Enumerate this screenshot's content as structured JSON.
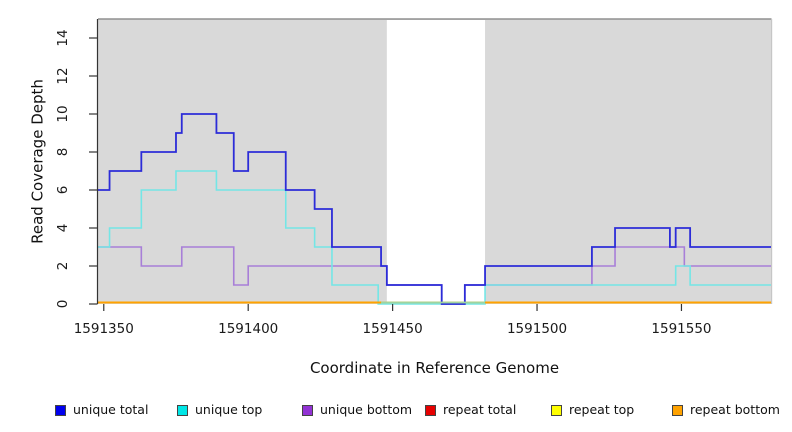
{
  "chart_data": {
    "type": "line",
    "subtype": "step-coverage",
    "title": "",
    "xlabel": "Coordinate in Reference Genome",
    "ylabel": "Read Coverage Depth",
    "xlim": [
      1591348,
      1591581
    ],
    "ylim": [
      0,
      15
    ],
    "x_ticks": [
      1591350,
      1591400,
      1591450,
      1591500,
      1591550
    ],
    "y_ticks": [
      0,
      2,
      4,
      6,
      8,
      10,
      12,
      14
    ],
    "grid": false,
    "legend_position": "bottom",
    "plot_bg_color": "#d9d9d9",
    "border_color": "#909090",
    "masked_region": {
      "x0": 1591448,
      "x1": 1591482,
      "color": "#ffffff"
    },
    "zero_band_segment": {
      "x0": 1591446,
      "x1": 1591482,
      "color": "#9fd49f"
    },
    "series": [
      {
        "id": "unique_total",
        "label": "unique total",
        "legend_color": "#0000ee",
        "line_color": "#2c2cd8",
        "x_end": 1591581,
        "steps": [
          [
            1591348,
            6
          ],
          [
            1591352,
            7
          ],
          [
            1591363,
            8
          ],
          [
            1591375,
            9
          ],
          [
            1591377,
            10
          ],
          [
            1591389,
            9
          ],
          [
            1591395,
            7
          ],
          [
            1591400,
            8
          ],
          [
            1591413,
            6
          ],
          [
            1591423,
            5
          ],
          [
            1591429,
            3
          ],
          [
            1591446,
            2
          ],
          [
            1591448,
            1
          ],
          [
            1591467,
            0
          ],
          [
            1591475,
            1
          ],
          [
            1591482,
            2
          ],
          [
            1591519,
            3
          ],
          [
            1591527,
            4
          ],
          [
            1591546,
            3
          ],
          [
            1591548,
            4
          ],
          [
            1591553,
            3
          ]
        ]
      },
      {
        "id": "unique_top",
        "label": "unique top",
        "legend_color": "#00e6e6",
        "line_color": "#74e6e6",
        "x_end": 1591581,
        "steps": [
          [
            1591348,
            3
          ],
          [
            1591352,
            4
          ],
          [
            1591363,
            6
          ],
          [
            1591375,
            7
          ],
          [
            1591389,
            6
          ],
          [
            1591413,
            4
          ],
          [
            1591423,
            3
          ],
          [
            1591429,
            1
          ],
          [
            1591445,
            0
          ],
          [
            1591482,
            1
          ],
          [
            1591548,
            2
          ],
          [
            1591553,
            1
          ]
        ]
      },
      {
        "id": "unique_bottom",
        "label": "unique bottom",
        "legend_color": "#9232d4",
        "line_color": "#a87fd8",
        "x_end": 1591581,
        "steps": [
          [
            1591348,
            3
          ],
          [
            1591363,
            2
          ],
          [
            1591377,
            3
          ],
          [
            1591395,
            1
          ],
          [
            1591400,
            2
          ],
          [
            1591448,
            1
          ],
          [
            1591467,
            0
          ],
          [
            1591475,
            1
          ],
          [
            1591519,
            2
          ],
          [
            1591527,
            3
          ],
          [
            1591551,
            2
          ]
        ]
      },
      {
        "id": "repeat_total",
        "label": "repeat total",
        "legend_color": "#e60000",
        "line_color": "#e60000",
        "x_end": 1591581,
        "steps": [
          [
            1591348,
            0
          ]
        ]
      },
      {
        "id": "repeat_top",
        "label": "repeat top",
        "legend_color": "#ffff00",
        "line_color": "#ffff00",
        "x_end": 1591581,
        "steps": [
          [
            1591348,
            0
          ]
        ]
      },
      {
        "id": "repeat_bottom",
        "label": "repeat bottom",
        "legend_color": "#ffa200",
        "line_color": "#ffa200",
        "x_end": 1591581,
        "gaps": [
          [
            1591446,
            1591482
          ]
        ],
        "steps": [
          [
            1591348,
            0
          ]
        ]
      }
    ]
  },
  "legend_item_x": [
    55,
    177,
    302,
    425,
    551,
    672
  ]
}
